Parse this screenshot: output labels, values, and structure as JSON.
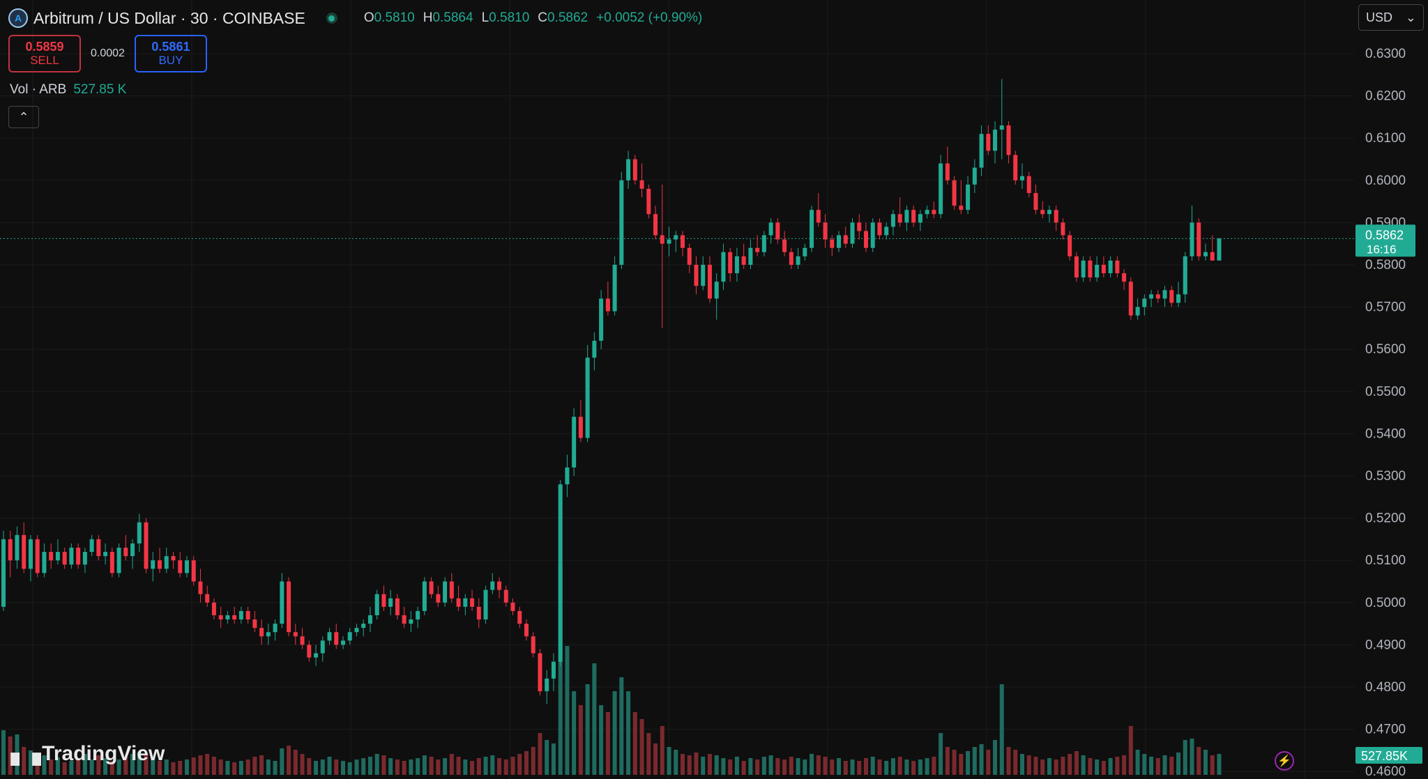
{
  "header": {
    "title": "Arbitrum / US Dollar · 30 · COINBASE",
    "ohlc": [
      {
        "label": "O",
        "value": "0.5810"
      },
      {
        "label": "H",
        "value": "0.5864"
      },
      {
        "label": "L",
        "value": "0.5810"
      },
      {
        "label": "C",
        "value": "0.5862"
      }
    ],
    "change": "+0.0052 (+0.90%)"
  },
  "trade": {
    "sell_price": "0.5859",
    "sell_label": "SELL",
    "spread": "0.0002",
    "buy_price": "0.5861",
    "buy_label": "BUY"
  },
  "volume": {
    "label": "Vol · ARB",
    "value": "527.85 K",
    "badge": "527.85K"
  },
  "currency": "USD",
  "branding": "TradingView",
  "colors": {
    "up": "#22ab94",
    "down": "#f23645",
    "background": "#0f0f0f",
    "grid": "#1c1c1e"
  },
  "price_badge": {
    "price": "0.5862",
    "countdown": "16:16"
  },
  "chart_data": {
    "type": "candlestick",
    "interval": "30",
    "ylim": [
      0.46,
      0.63
    ],
    "y_ticks": [
      "0.6300",
      "0.6200",
      "0.6100",
      "0.6000",
      "0.5900",
      "0.5800",
      "0.5700",
      "0.5600",
      "0.5500",
      "0.5400",
      "0.5300",
      "0.5200",
      "0.5100",
      "0.5000",
      "0.4900",
      "0.4800",
      "0.4700",
      "0.4600"
    ],
    "last_price": 0.5862,
    "candles": [
      [
        0.499,
        0.517,
        0.498,
        0.515,
        64
      ],
      [
        0.515,
        0.517,
        0.506,
        0.51,
        55
      ],
      [
        0.51,
        0.518,
        0.508,
        0.516,
        58
      ],
      [
        0.516,
        0.519,
        0.507,
        0.508,
        40
      ],
      [
        0.508,
        0.516,
        0.505,
        0.515,
        35
      ],
      [
        0.515,
        0.516,
        0.506,
        0.507,
        30
      ],
      [
        0.507,
        0.514,
        0.506,
        0.512,
        28
      ],
      [
        0.512,
        0.514,
        0.508,
        0.51,
        22
      ],
      [
        0.51,
        0.515,
        0.509,
        0.512,
        25
      ],
      [
        0.512,
        0.513,
        0.508,
        0.509,
        18
      ],
      [
        0.509,
        0.514,
        0.508,
        0.513,
        20
      ],
      [
        0.513,
        0.514,
        0.508,
        0.509,
        24
      ],
      [
        0.509,
        0.513,
        0.507,
        0.512,
        30
      ],
      [
        0.512,
        0.516,
        0.511,
        0.515,
        22
      ],
      [
        0.515,
        0.516,
        0.51,
        0.511,
        28
      ],
      [
        0.511,
        0.514,
        0.509,
        0.512,
        24
      ],
      [
        0.512,
        0.513,
        0.506,
        0.507,
        20
      ],
      [
        0.507,
        0.514,
        0.506,
        0.513,
        22
      ],
      [
        0.513,
        0.516,
        0.51,
        0.511,
        26
      ],
      [
        0.511,
        0.515,
        0.508,
        0.514,
        30
      ],
      [
        0.514,
        0.521,
        0.512,
        0.519,
        32
      ],
      [
        0.519,
        0.52,
        0.507,
        0.508,
        30
      ],
      [
        0.508,
        0.512,
        0.505,
        0.51,
        26
      ],
      [
        0.51,
        0.513,
        0.507,
        0.508,
        20
      ],
      [
        0.508,
        0.513,
        0.507,
        0.511,
        22
      ],
      [
        0.511,
        0.512,
        0.508,
        0.51,
        18
      ],
      [
        0.51,
        0.512,
        0.506,
        0.507,
        20
      ],
      [
        0.507,
        0.511,
        0.506,
        0.51,
        22
      ],
      [
        0.51,
        0.511,
        0.504,
        0.505,
        25
      ],
      [
        0.505,
        0.508,
        0.5,
        0.502,
        28
      ],
      [
        0.502,
        0.504,
        0.499,
        0.5,
        30
      ],
      [
        0.5,
        0.501,
        0.496,
        0.497,
        26
      ],
      [
        0.497,
        0.499,
        0.494,
        0.496,
        22
      ],
      [
        0.496,
        0.498,
        0.495,
        0.497,
        20
      ],
      [
        0.497,
        0.499,
        0.495,
        0.496,
        18
      ],
      [
        0.496,
        0.499,
        0.495,
        0.498,
        20
      ],
      [
        0.498,
        0.499,
        0.495,
        0.496,
        22
      ],
      [
        0.496,
        0.498,
        0.493,
        0.494,
        26
      ],
      [
        0.494,
        0.496,
        0.49,
        0.492,
        28
      ],
      [
        0.492,
        0.495,
        0.49,
        0.493,
        22
      ],
      [
        0.493,
        0.496,
        0.491,
        0.495,
        20
      ],
      [
        0.495,
        0.507,
        0.494,
        0.505,
        38
      ],
      [
        0.505,
        0.506,
        0.492,
        0.493,
        42
      ],
      [
        0.493,
        0.495,
        0.49,
        0.492,
        36
      ],
      [
        0.492,
        0.494,
        0.489,
        0.49,
        30
      ],
      [
        0.49,
        0.491,
        0.486,
        0.487,
        24
      ],
      [
        0.487,
        0.49,
        0.485,
        0.488,
        20
      ],
      [
        0.488,
        0.492,
        0.486,
        0.491,
        22
      ],
      [
        0.491,
        0.494,
        0.49,
        0.493,
        26
      ],
      [
        0.493,
        0.495,
        0.489,
        0.49,
        22
      ],
      [
        0.49,
        0.492,
        0.489,
        0.491,
        20
      ],
      [
        0.491,
        0.494,
        0.49,
        0.493,
        18
      ],
      [
        0.493,
        0.495,
        0.492,
        0.494,
        22
      ],
      [
        0.494,
        0.496,
        0.492,
        0.495,
        24
      ],
      [
        0.495,
        0.499,
        0.493,
        0.497,
        26
      ],
      [
        0.497,
        0.503,
        0.496,
        0.502,
        30
      ],
      [
        0.502,
        0.504,
        0.498,
        0.499,
        28
      ],
      [
        0.499,
        0.503,
        0.497,
        0.501,
        24
      ],
      [
        0.501,
        0.502,
        0.496,
        0.497,
        22
      ],
      [
        0.497,
        0.499,
        0.494,
        0.495,
        20
      ],
      [
        0.495,
        0.498,
        0.493,
        0.496,
        22
      ],
      [
        0.496,
        0.499,
        0.494,
        0.498,
        24
      ],
      [
        0.498,
        0.506,
        0.497,
        0.505,
        28
      ],
      [
        0.505,
        0.506,
        0.501,
        0.502,
        26
      ],
      [
        0.502,
        0.504,
        0.499,
        0.5,
        22
      ],
      [
        0.5,
        0.506,
        0.499,
        0.505,
        24
      ],
      [
        0.505,
        0.507,
        0.5,
        0.501,
        30
      ],
      [
        0.501,
        0.504,
        0.498,
        0.499,
        26
      ],
      [
        0.499,
        0.502,
        0.497,
        0.501,
        22
      ],
      [
        0.501,
        0.503,
        0.498,
        0.499,
        20
      ],
      [
        0.499,
        0.501,
        0.494,
        0.496,
        24
      ],
      [
        0.496,
        0.504,
        0.495,
        0.503,
        26
      ],
      [
        0.503,
        0.507,
        0.502,
        0.505,
        28
      ],
      [
        0.505,
        0.506,
        0.501,
        0.503,
        24
      ],
      [
        0.503,
        0.504,
        0.499,
        0.5,
        22
      ],
      [
        0.5,
        0.501,
        0.497,
        0.498,
        26
      ],
      [
        0.498,
        0.499,
        0.494,
        0.495,
        30
      ],
      [
        0.495,
        0.496,
        0.491,
        0.492,
        34
      ],
      [
        0.492,
        0.493,
        0.487,
        0.488,
        40
      ],
      [
        0.488,
        0.489,
        0.478,
        0.479,
        60
      ],
      [
        0.479,
        0.484,
        0.476,
        0.482,
        50
      ],
      [
        0.482,
        0.488,
        0.479,
        0.486,
        45
      ],
      [
        0.486,
        0.529,
        0.485,
        0.528,
        300
      ],
      [
        0.528,
        0.535,
        0.525,
        0.532,
        185
      ],
      [
        0.532,
        0.546,
        0.53,
        0.544,
        120
      ],
      [
        0.544,
        0.548,
        0.538,
        0.539,
        100
      ],
      [
        0.539,
        0.561,
        0.538,
        0.558,
        130
      ],
      [
        0.558,
        0.564,
        0.555,
        0.562,
        160
      ],
      [
        0.562,
        0.574,
        0.56,
        0.572,
        100
      ],
      [
        0.572,
        0.576,
        0.568,
        0.569,
        90
      ],
      [
        0.569,
        0.582,
        0.568,
        0.58,
        120
      ],
      [
        0.58,
        0.602,
        0.579,
        0.6,
        140
      ],
      [
        0.6,
        0.607,
        0.598,
        0.605,
        120
      ],
      [
        0.605,
        0.606,
        0.599,
        0.6,
        90
      ],
      [
        0.6,
        0.604,
        0.596,
        0.598,
        80
      ],
      [
        0.598,
        0.599,
        0.591,
        0.592,
        60
      ],
      [
        0.592,
        0.594,
        0.586,
        0.587,
        45
      ],
      [
        0.587,
        0.599,
        0.565,
        0.585,
        70
      ],
      [
        0.585,
        0.589,
        0.582,
        0.586,
        40
      ],
      [
        0.586,
        0.588,
        0.583,
        0.587,
        36
      ],
      [
        0.587,
        0.588,
        0.582,
        0.584,
        30
      ],
      [
        0.584,
        0.585,
        0.578,
        0.58,
        28
      ],
      [
        0.58,
        0.582,
        0.573,
        0.575,
        32
      ],
      [
        0.575,
        0.582,
        0.574,
        0.58,
        26
      ],
      [
        0.58,
        0.582,
        0.571,
        0.572,
        30
      ],
      [
        0.572,
        0.578,
        0.567,
        0.576,
        28
      ],
      [
        0.576,
        0.585,
        0.574,
        0.583,
        24
      ],
      [
        0.583,
        0.584,
        0.576,
        0.578,
        22
      ],
      [
        0.578,
        0.584,
        0.576,
        0.582,
        26
      ],
      [
        0.582,
        0.585,
        0.579,
        0.58,
        20
      ],
      [
        0.58,
        0.586,
        0.579,
        0.584,
        24
      ],
      [
        0.584,
        0.587,
        0.582,
        0.583,
        22
      ],
      [
        0.583,
        0.588,
        0.582,
        0.587,
        26
      ],
      [
        0.587,
        0.591,
        0.585,
        0.59,
        28
      ],
      [
        0.59,
        0.591,
        0.585,
        0.586,
        24
      ],
      [
        0.586,
        0.588,
        0.582,
        0.583,
        22
      ],
      [
        0.583,
        0.584,
        0.579,
        0.58,
        26
      ],
      [
        0.58,
        0.584,
        0.579,
        0.582,
        24
      ],
      [
        0.582,
        0.585,
        0.581,
        0.584,
        22
      ],
      [
        0.584,
        0.594,
        0.583,
        0.593,
        30
      ],
      [
        0.593,
        0.597,
        0.589,
        0.59,
        28
      ],
      [
        0.59,
        0.592,
        0.584,
        0.586,
        26
      ],
      [
        0.586,
        0.587,
        0.582,
        0.584,
        22
      ],
      [
        0.584,
        0.588,
        0.583,
        0.587,
        24
      ],
      [
        0.587,
        0.589,
        0.584,
        0.585,
        20
      ],
      [
        0.585,
        0.591,
        0.584,
        0.59,
        22
      ],
      [
        0.59,
        0.592,
        0.586,
        0.588,
        20
      ],
      [
        0.588,
        0.59,
        0.583,
        0.584,
        24
      ],
      [
        0.584,
        0.591,
        0.583,
        0.59,
        26
      ],
      [
        0.59,
        0.591,
        0.586,
        0.587,
        22
      ],
      [
        0.587,
        0.59,
        0.586,
        0.589,
        20
      ],
      [
        0.589,
        0.593,
        0.587,
        0.592,
        24
      ],
      [
        0.592,
        0.596,
        0.589,
        0.59,
        26
      ],
      [
        0.59,
        0.594,
        0.588,
        0.593,
        22
      ],
      [
        0.593,
        0.594,
        0.589,
        0.59,
        20
      ],
      [
        0.59,
        0.593,
        0.588,
        0.592,
        22
      ],
      [
        0.592,
        0.594,
        0.591,
        0.593,
        24
      ],
      [
        0.593,
        0.595,
        0.591,
        0.592,
        26
      ],
      [
        0.592,
        0.606,
        0.591,
        0.604,
        60
      ],
      [
        0.604,
        0.608,
        0.599,
        0.6,
        40
      ],
      [
        0.6,
        0.601,
        0.593,
        0.594,
        36
      ],
      [
        0.594,
        0.6,
        0.592,
        0.593,
        30
      ],
      [
        0.593,
        0.601,
        0.592,
        0.599,
        34
      ],
      [
        0.599,
        0.605,
        0.597,
        0.603,
        40
      ],
      [
        0.603,
        0.613,
        0.601,
        0.611,
        44
      ],
      [
        0.611,
        0.613,
        0.606,
        0.607,
        36
      ],
      [
        0.607,
        0.614,
        0.604,
        0.612,
        50
      ],
      [
        0.612,
        0.624,
        0.605,
        0.613,
        130
      ],
      [
        0.613,
        0.614,
        0.604,
        0.606,
        40
      ],
      [
        0.606,
        0.607,
        0.599,
        0.6,
        36
      ],
      [
        0.6,
        0.604,
        0.598,
        0.601,
        30
      ],
      [
        0.601,
        0.602,
        0.596,
        0.597,
        28
      ],
      [
        0.597,
        0.599,
        0.592,
        0.593,
        26
      ],
      [
        0.593,
        0.595,
        0.591,
        0.592,
        22
      ],
      [
        0.592,
        0.594,
        0.59,
        0.593,
        24
      ],
      [
        0.593,
        0.594,
        0.588,
        0.59,
        22
      ],
      [
        0.59,
        0.591,
        0.586,
        0.587,
        26
      ],
      [
        0.587,
        0.588,
        0.581,
        0.582,
        30
      ],
      [
        0.582,
        0.583,
        0.576,
        0.577,
        34
      ],
      [
        0.577,
        0.582,
        0.576,
        0.581,
        28
      ],
      [
        0.581,
        0.582,
        0.576,
        0.577,
        24
      ],
      [
        0.577,
        0.582,
        0.576,
        0.58,
        22
      ],
      [
        0.58,
        0.582,
        0.577,
        0.578,
        20
      ],
      [
        0.578,
        0.582,
        0.577,
        0.581,
        24
      ],
      [
        0.581,
        0.582,
        0.577,
        0.578,
        26
      ],
      [
        0.578,
        0.579,
        0.574,
        0.576,
        28
      ],
      [
        0.576,
        0.577,
        0.567,
        0.568,
        70
      ],
      [
        0.568,
        0.572,
        0.567,
        0.57,
        36
      ],
      [
        0.57,
        0.573,
        0.568,
        0.572,
        30
      ],
      [
        0.572,
        0.574,
        0.57,
        0.573,
        26
      ],
      [
        0.573,
        0.574,
        0.571,
        0.572,
        24
      ],
      [
        0.572,
        0.575,
        0.57,
        0.574,
        28
      ],
      [
        0.574,
        0.575,
        0.57,
        0.571,
        26
      ],
      [
        0.571,
        0.576,
        0.57,
        0.573,
        32
      ],
      [
        0.573,
        0.583,
        0.571,
        0.582,
        50
      ],
      [
        0.582,
        0.594,
        0.581,
        0.59,
        52
      ],
      [
        0.59,
        0.591,
        0.581,
        0.582,
        40
      ],
      [
        0.582,
        0.585,
        0.581,
        0.583,
        36
      ],
      [
        0.583,
        0.587,
        0.581,
        0.581,
        28
      ],
      [
        0.581,
        0.5864,
        0.581,
        0.5862,
        30
      ]
    ]
  }
}
